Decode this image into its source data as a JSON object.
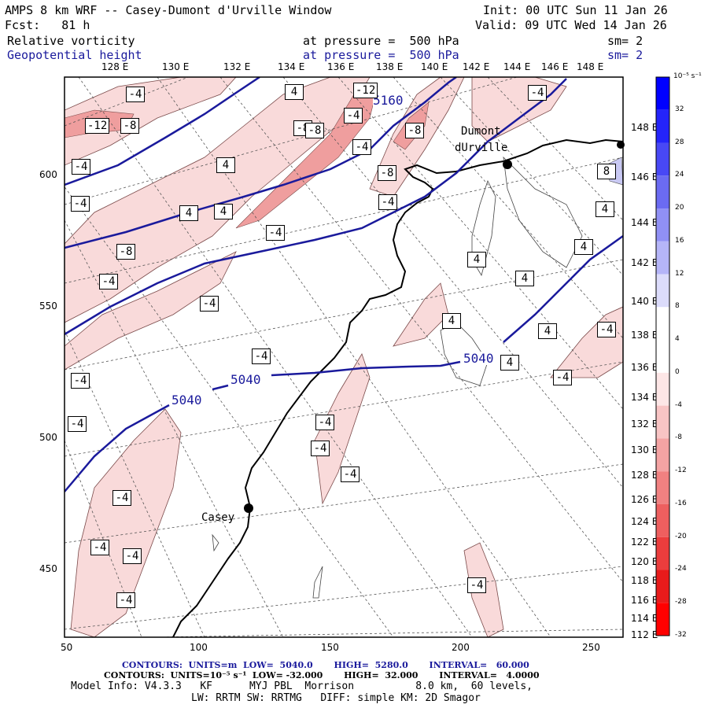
{
  "header": {
    "title": "AMPS 8 km WRF -- Casey-Dumont d'Urville Window",
    "fcst": "Fcst:   81 h",
    "init": "Init: 00 UTC Sun 11 Jan 26",
    "valid": "Valid: 09 UTC Wed 14 Jan 26",
    "field1": "Relative vorticity",
    "field2": "Geopotential height",
    "pressure1": "at pressure =  500 hPa",
    "pressure2": "at pressure =  500 hPa",
    "sm1": "sm= 2",
    "sm2": "sm= 2"
  },
  "map": {
    "top_lon_labels": [
      "128 E",
      "130 E",
      "132 E",
      "134 E",
      "136 E",
      "138 E",
      "140 E",
      "142 E",
      "144 E",
      "146 E",
      "148 E"
    ],
    "right_lon_labels": [
      "148 E",
      "146 E",
      "144 E",
      "142 E",
      "140 E",
      "138 E",
      "136 E",
      "134 E",
      "132 E",
      "130 E",
      "128 E",
      "126 E",
      "124 E",
      "122 E",
      "120 E",
      "118 E",
      "116 E",
      "114 E",
      "112 E"
    ],
    "x_ticks": [
      "50",
      "100",
      "150",
      "200",
      "250"
    ],
    "y_ticks": [
      "600",
      "550",
      "500",
      "450"
    ],
    "stations": [
      {
        "name": "Casey"
      },
      {
        "name": "Dumont dUrville",
        "line1": "Dumont",
        "line2": "dUrville"
      }
    ],
    "height_labels": [
      "5160",
      "5040",
      "5040",
      "5040"
    ],
    "vort_labels": [
      "-4",
      "-12",
      "-8",
      "-12",
      "-8",
      "-4",
      "-8",
      "-8",
      "-4",
      "-4",
      "-4",
      "-8",
      "-4",
      "-4",
      "-8",
      "-4",
      "-4",
      "-4",
      "-4",
      "-4",
      "-4",
      "-4",
      "-4",
      "-4",
      "-4",
      "-4",
      "-4",
      "-4",
      "-4",
      "-4",
      "-4",
      "4",
      "4",
      "4",
      "4",
      "4",
      "4",
      "4",
      "4",
      "4",
      "4",
      "4",
      "8"
    ],
    "colors": {
      "height_contour": "#1a1a9c",
      "coast": "#000000",
      "neg_fill": "#f7d4d4",
      "neg_fill_strong": "#ee9999"
    }
  },
  "colorbar": {
    "unit": "10⁻⁵ s⁻¹",
    "labels": [
      "32",
      "28",
      "24",
      "20",
      "16",
      "12",
      "8",
      "4",
      "0",
      "-4",
      "-8",
      "-12",
      "-16",
      "-20",
      "-24",
      "-28",
      "-32"
    ],
    "colors": [
      "#0000ff",
      "#2424fa",
      "#4848f5",
      "#6b6bf2",
      "#9090f5",
      "#b5b5f8",
      "#dcdcfb",
      "#ffffff",
      "#ffffff",
      "#fde6e6",
      "#f8c4c4",
      "#f4a3a3",
      "#f18181",
      "#ee5f5f",
      "#eb3d3d",
      "#e81b1b",
      "#ff0000"
    ]
  },
  "footer": {
    "line1": "CONTOURS:  UNITS=m  LOW=  5040.0       HIGH=  5280.0       INTERVAL=   60.000",
    "line2": "CONTOURS:  UNITS=10⁻⁵ s⁻¹  LOW= -32.000       HIGH=  32.000       INTERVAL=   4.0000",
    "line3": "Model Info: V4.3.3   KF      MYJ PBL  Morrison          8.0 km,  60 levels,",
    "line4": "LW: RRTM SW: RRTMG   DIFF: simple KM: 2D Smagor"
  }
}
